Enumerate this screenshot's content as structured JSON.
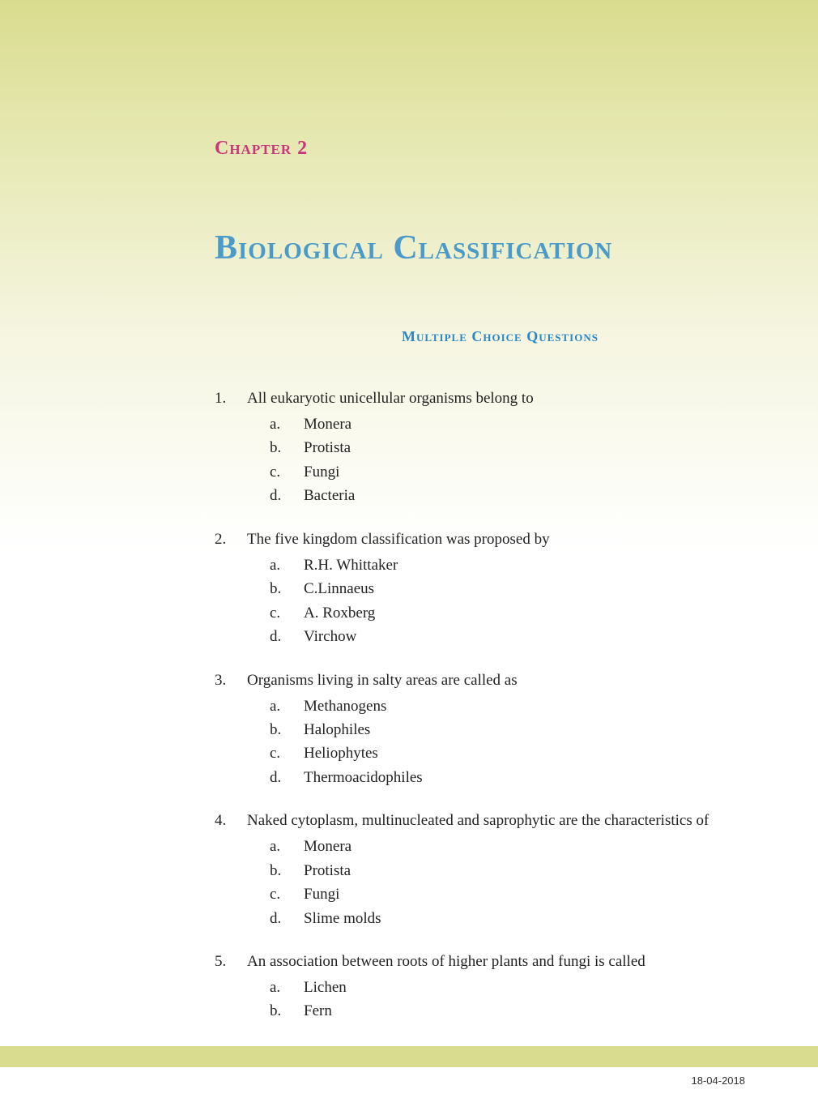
{
  "chapter_label": "Chapter 2",
  "chapter_title": "Biological Classification",
  "section_heading": "Multiple Choice Questions",
  "footer_date": "18-04-2018",
  "colors": {
    "chapter_label": "#c9377a",
    "chapter_title": "#4a9bc9",
    "section_heading": "#2b87c4",
    "body_text": "#222222",
    "gradient_top": "#d9dc8e",
    "gradient_bottom": "#ffffff",
    "footer_bar": "#d9dc8e"
  },
  "typography": {
    "body_fontsize": 19,
    "title_fontsize": 42,
    "label_fontsize": 24,
    "section_fontsize": 18,
    "font_family": "Georgia, serif"
  },
  "questions": [
    {
      "number": "1.",
      "text": "All eukaryotic unicellular organisms belong to",
      "options": [
        {
          "letter": "a.",
          "text": "Monera"
        },
        {
          "letter": "b.",
          "text": "Protista"
        },
        {
          "letter": "c.",
          "text": "Fungi"
        },
        {
          "letter": "d.",
          "text": "Bacteria"
        }
      ]
    },
    {
      "number": "2.",
      "text": "The five kingdom classification was proposed by",
      "options": [
        {
          "letter": "a.",
          "text": "R.H. Whittaker"
        },
        {
          "letter": "b.",
          "text": "C.Linnaeus"
        },
        {
          "letter": "c.",
          "text": "A. Roxberg"
        },
        {
          "letter": "d.",
          "text": "Virchow"
        }
      ]
    },
    {
      "number": "3.",
      "text": "Organisms living in salty areas are called as",
      "options": [
        {
          "letter": "a.",
          "text": "Methanogens"
        },
        {
          "letter": "b.",
          "text": "Halophiles"
        },
        {
          "letter": "c.",
          "text": "Heliophytes"
        },
        {
          "letter": "d.",
          "text": "Thermoacidophiles"
        }
      ]
    },
    {
      "number": "4.",
      "text": "Naked cytoplasm, multinucleated and saprophytic are the characteristics of",
      "options": [
        {
          "letter": "a.",
          "text": "Monera"
        },
        {
          "letter": "b.",
          "text": "Protista"
        },
        {
          "letter": "c.",
          "text": "Fungi"
        },
        {
          "letter": "d.",
          "text": "Slime molds"
        }
      ]
    },
    {
      "number": "5.",
      "text": "An association between roots of higher plants and fungi is called",
      "options": [
        {
          "letter": "a.",
          "text": "Lichen"
        },
        {
          "letter": "b.",
          "text": "Fern"
        }
      ]
    }
  ]
}
